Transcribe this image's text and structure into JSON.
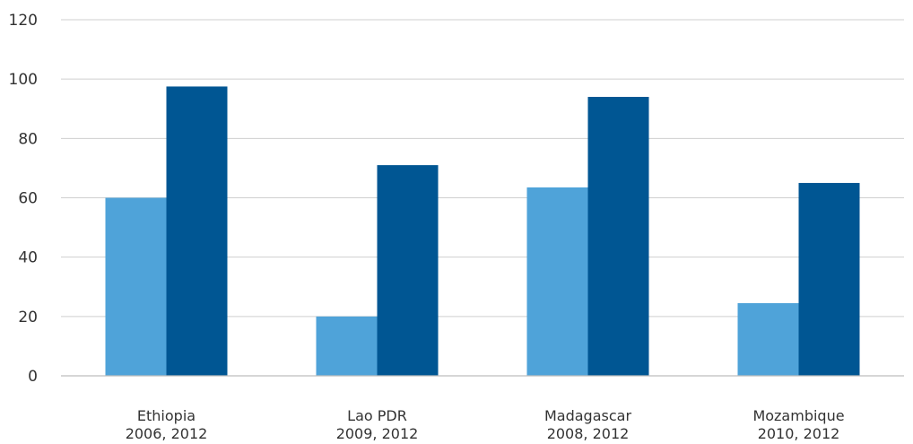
{
  "chart_data": {
    "type": "bar",
    "title": "",
    "xlabel": "",
    "ylabel": "",
    "categories": [
      [
        "Ethiopia",
        "2006, 2012"
      ],
      [
        "Lao PDR",
        "2009, 2012"
      ],
      [
        "Madagascar",
        "2008, 2012"
      ],
      [
        "Mozambique",
        "2010, 2012"
      ]
    ],
    "series": [
      {
        "values": [
          60,
          20,
          63.5,
          24.5
        ],
        "color": "#4fa3d9"
      },
      {
        "values": [
          97.5,
          71,
          94,
          65
        ],
        "color": "#005693"
      }
    ],
    "ylim": [
      0,
      120
    ],
    "yticks": [
      0,
      20,
      40,
      60,
      80,
      100,
      120
    ],
    "grid": true,
    "legend": "none"
  }
}
